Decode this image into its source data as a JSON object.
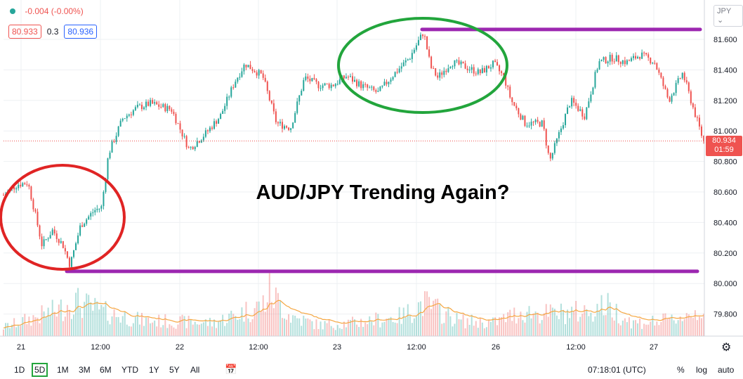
{
  "header": {
    "change": "-0.004 (-0.00%)",
    "bid": "80.933",
    "spread": "0.3",
    "ask": "80.936",
    "currency": "JPY"
  },
  "colors": {
    "up": "#26a69a",
    "down": "#ef5350",
    "support_resistance": "#9c27b0",
    "circle_low": "#e02424",
    "circle_high": "#22a53c",
    "volume_ma": "#f5a742"
  },
  "last_price": {
    "value": "80.934",
    "countdown": "01:59",
    "level": 80.934
  },
  "bottom": {
    "periods": [
      "1D",
      "5D",
      "1M",
      "3M",
      "6M",
      "YTD",
      "1Y",
      "5Y",
      "All"
    ],
    "active_period": "5D",
    "time": "07:18:01 (UTC)",
    "options": [
      "%",
      "log",
      "auto"
    ]
  },
  "chart_data": {
    "type": "candlestick",
    "title": "AUD/JPY Trending Again?",
    "y_ticks": [
      "81.600",
      "81.400",
      "81.200",
      "81.000",
      "80.800",
      "80.600",
      "80.400",
      "80.200",
      "80.000",
      "79.800"
    ],
    "ylim": [
      79.73,
      81.72
    ],
    "x_ticks": [
      "21",
      "12:00",
      "22",
      "12:00",
      "23",
      "12:00",
      "26",
      "12:00",
      "27"
    ],
    "resistance": 81.665,
    "support": 80.08,
    "price_path": [
      [
        0,
        80.58
      ],
      [
        0.02,
        80.65
      ],
      [
        0.035,
        80.66
      ],
      [
        0.045,
        80.46
      ],
      [
        0.055,
        80.25
      ],
      [
        0.07,
        80.35
      ],
      [
        0.085,
        80.25
      ],
      [
        0.095,
        80.12
      ],
      [
        0.11,
        80.38
      ],
      [
        0.13,
        80.48
      ],
      [
        0.14,
        80.5
      ],
      [
        0.15,
        80.85
      ],
      [
        0.17,
        81.08
      ],
      [
        0.19,
        81.15
      ],
      [
        0.21,
        81.18
      ],
      [
        0.24,
        81.14
      ],
      [
        0.265,
        80.88
      ],
      [
        0.29,
        80.99
      ],
      [
        0.31,
        81.1
      ],
      [
        0.33,
        81.32
      ],
      [
        0.345,
        81.44
      ],
      [
        0.37,
        81.36
      ],
      [
        0.39,
        81.05
      ],
      [
        0.41,
        81.02
      ],
      [
        0.43,
        81.35
      ],
      [
        0.45,
        81.3
      ],
      [
        0.47,
        81.3
      ],
      [
        0.49,
        81.36
      ],
      [
        0.51,
        81.3
      ],
      [
        0.535,
        81.25
      ],
      [
        0.555,
        81.36
      ],
      [
        0.58,
        81.48
      ],
      [
        0.6,
        81.65
      ],
      [
        0.61,
        81.42
      ],
      [
        0.62,
        81.35
      ],
      [
        0.64,
        81.45
      ],
      [
        0.66,
        81.42
      ],
      [
        0.68,
        81.38
      ],
      [
        0.7,
        81.44
      ],
      [
        0.715,
        81.35
      ],
      [
        0.725,
        81.2
      ],
      [
        0.745,
        81.05
      ],
      [
        0.77,
        81.05
      ],
      [
        0.78,
        80.8
      ],
      [
        0.795,
        81.0
      ],
      [
        0.81,
        81.2
      ],
      [
        0.83,
        81.1
      ],
      [
        0.85,
        81.45
      ],
      [
        0.87,
        81.48
      ],
      [
        0.89,
        81.45
      ],
      [
        0.91,
        81.5
      ],
      [
        0.93,
        81.45
      ],
      [
        0.95,
        81.2
      ],
      [
        0.97,
        81.38
      ],
      [
        0.985,
        81.15
      ],
      [
        1,
        80.93
      ]
    ],
    "volume_profile": [
      [
        0,
        0.2
      ],
      [
        0.08,
        0.6
      ],
      [
        0.1,
        0.8
      ],
      [
        0.14,
        0.55
      ],
      [
        0.2,
        0.35
      ],
      [
        0.3,
        0.3
      ],
      [
        0.37,
        0.7
      ],
      [
        0.38,
        1.0
      ],
      [
        0.41,
        0.45
      ],
      [
        0.45,
        0.25
      ],
      [
        0.5,
        0.3
      ],
      [
        0.57,
        0.45
      ],
      [
        0.6,
        0.75
      ],
      [
        0.65,
        0.35
      ],
      [
        0.7,
        0.3
      ],
      [
        0.74,
        0.55
      ],
      [
        0.78,
        0.5
      ],
      [
        0.83,
        0.55
      ],
      [
        0.86,
        0.7
      ],
      [
        0.9,
        0.3
      ],
      [
        0.95,
        0.35
      ],
      [
        1,
        0.6
      ]
    ],
    "grid": true
  }
}
